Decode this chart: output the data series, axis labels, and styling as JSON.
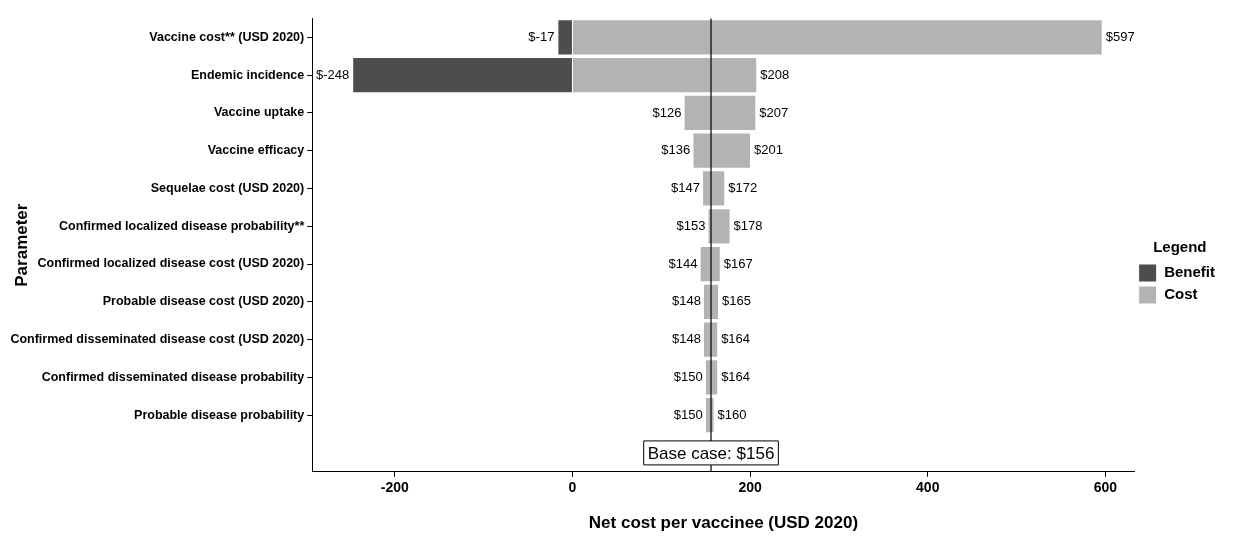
{
  "chart_data": {
    "type": "bar",
    "orientation": "horizontal",
    "stacked": false,
    "xlabel": "Net cost per vaccinee (USD 2020)",
    "ylabel": "Parameter",
    "legend_title": "Legend",
    "legend": "right",
    "grid": false,
    "categories": [
      "Vaccine cost** (USD 2020)",
      "Endemic incidence",
      "Vaccine uptake",
      "Vaccine efficacy",
      "Sequelae cost (USD 2020)",
      "Confirmed localized disease probability**",
      "Confirmed localized disease cost (USD 2020)",
      "Probable disease cost (USD 2020)",
      "Confirmed disseminated disease cost (USD 2020)",
      "Confirmed disseminated disease probability",
      "Probable disease probability"
    ],
    "series": [
      {
        "name": "Benefit",
        "color": "#4d4d4d",
        "base": [
          -17,
          -248,
          null,
          null,
          null,
          null,
          null,
          null,
          null,
          null,
          null
        ],
        "values": [
          17,
          248,
          null,
          null,
          null,
          null,
          null,
          null,
          null,
          null,
          null
        ]
      },
      {
        "name": "Cost",
        "color": "#b3b3b3",
        "base": [
          0,
          0,
          126,
          136,
          147,
          153,
          144,
          148,
          148,
          150,
          150
        ],
        "values": [
          597,
          208,
          81,
          65,
          25,
          25,
          23,
          17,
          16,
          14,
          10
        ]
      }
    ],
    "xlim": [
      -293,
      633
    ],
    "xticks": [
      -200,
      0,
      200,
      400,
      600
    ],
    "ref_lines": [
      {
        "axis": "x",
        "value": 156,
        "label": "Base case: $156",
        "color": "#000000"
      }
    ],
    "annotations": [
      {
        "text": "$-17",
        "x": -17,
        "y": "Vaccine cost** (USD 2020)"
      },
      {
        "text": "$597",
        "x": 597,
        "y": "Vaccine cost** (USD 2020)"
      },
      {
        "text": "$-248",
        "x": -248,
        "y": "Endemic incidence"
      },
      {
        "text": "$208",
        "x": 208,
        "y": "Endemic incidence"
      },
      {
        "text": "$126",
        "x": 126,
        "y": "Vaccine uptake"
      },
      {
        "text": "$207",
        "x": 207,
        "y": "Vaccine uptake"
      },
      {
        "text": "$136",
        "x": 136,
        "y": "Vaccine efficacy"
      },
      {
        "text": "$201",
        "x": 201,
        "y": "Vaccine efficacy"
      },
      {
        "text": "$147",
        "x": 147,
        "y": "Sequelae cost (USD 2020)"
      },
      {
        "text": "$172",
        "x": 172,
        "y": "Sequelae cost (USD 2020)"
      },
      {
        "text": "$153",
        "x": 153,
        "y": "Confirmed localized disease probability**"
      },
      {
        "text": "$178",
        "x": 178,
        "y": "Confirmed localized disease probability**"
      },
      {
        "text": "$144",
        "x": 144,
        "y": "Confirmed localized disease cost (USD 2020)"
      },
      {
        "text": "$167",
        "x": 167,
        "y": "Confirmed localized disease cost (USD 2020)"
      },
      {
        "text": "$148",
        "x": 148,
        "y": "Probable disease cost (USD 2020)"
      },
      {
        "text": "$165",
        "x": 165,
        "y": "Probable disease cost (USD 2020)"
      },
      {
        "text": "$148",
        "x": 148,
        "y": "Confirmed disseminated disease cost (USD 2020)"
      },
      {
        "text": "$164",
        "x": 164,
        "y": "Confirmed disseminated disease cost (USD 2020)"
      },
      {
        "text": "$150",
        "x": 150,
        "y": "Confirmed disseminated disease probability"
      },
      {
        "text": "$164",
        "x": 164,
        "y": "Confirmed disseminated disease probability"
      },
      {
        "text": "$150",
        "x": 150,
        "y": "Probable disease probability"
      },
      {
        "text": "$160",
        "x": 160,
        "y": "Probable disease probability"
      }
    ]
  }
}
